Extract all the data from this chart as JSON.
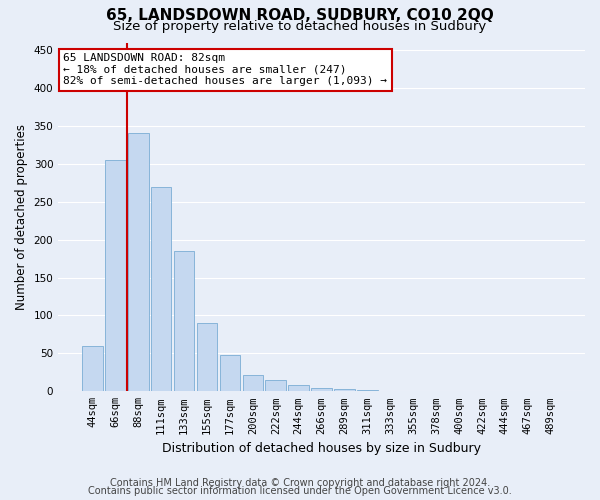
{
  "title": "65, LANDSDOWN ROAD, SUDBURY, CO10 2QQ",
  "subtitle": "Size of property relative to detached houses in Sudbury",
  "xlabel": "Distribution of detached houses by size in Sudbury",
  "ylabel": "Number of detached properties",
  "footer_line1": "Contains HM Land Registry data © Crown copyright and database right 2024.",
  "footer_line2": "Contains public sector information licensed under the Open Government Licence v3.0.",
  "bin_labels": [
    "44sqm",
    "66sqm",
    "88sqm",
    "111sqm",
    "133sqm",
    "155sqm",
    "177sqm",
    "200sqm",
    "222sqm",
    "244sqm",
    "266sqm",
    "289sqm",
    "311sqm",
    "333sqm",
    "355sqm",
    "378sqm",
    "400sqm",
    "422sqm",
    "444sqm",
    "467sqm",
    "489sqm"
  ],
  "bar_values": [
    60,
    305,
    340,
    270,
    185,
    90,
    48,
    22,
    15,
    8,
    5,
    3,
    2,
    1,
    1,
    0,
    0,
    1,
    0,
    1,
    0
  ],
  "bar_color": "#c5d8f0",
  "bar_edge_color": "#7aadd4",
  "vline_color": "#cc0000",
  "annotation_line1": "65 LANDSDOWN ROAD: 82sqm",
  "annotation_line2": "← 18% of detached houses are smaller (247)",
  "annotation_line3": "82% of semi-detached houses are larger (1,093) →",
  "annotation_box_facecolor": "#ffffff",
  "annotation_box_edgecolor": "#cc0000",
  "ylim": [
    0,
    460
  ],
  "yticks": [
    0,
    50,
    100,
    150,
    200,
    250,
    300,
    350,
    400,
    450
  ],
  "background_color": "#e8eef8",
  "grid_color": "#ffffff",
  "title_fontsize": 11,
  "subtitle_fontsize": 9.5,
  "ylabel_fontsize": 8.5,
  "xlabel_fontsize": 9,
  "tick_fontsize": 7.5,
  "annotation_fontsize": 8,
  "footer_fontsize": 7
}
